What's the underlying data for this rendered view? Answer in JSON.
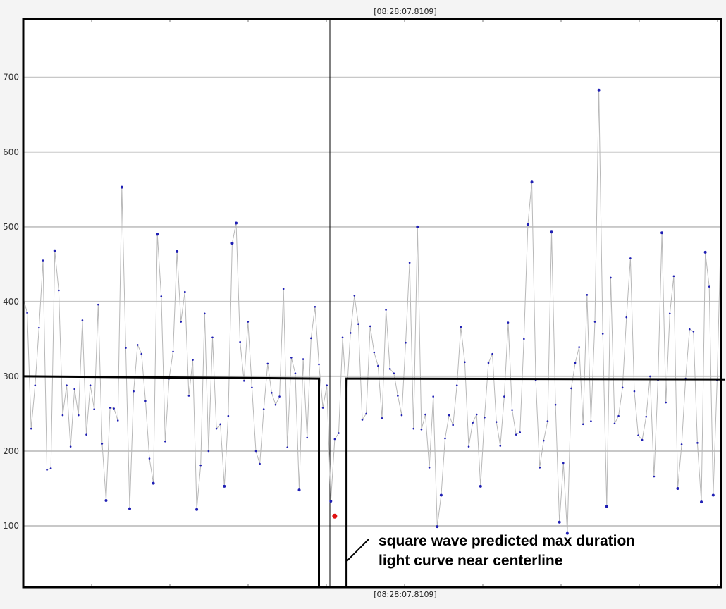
{
  "top_timestamp": "[08:28:07.8109]",
  "bottom_timestamp": "[08:28:07.8109]",
  "annotation": {
    "line1": "square wave predicted max duration",
    "line2": "light curve near centerline"
  },
  "colors": {
    "grid": "#c8c8c8",
    "curve": "#b8b8b8",
    "point": "#1f1fb4",
    "square_wave": "#000000",
    "highlight_point": "#e01010"
  },
  "chart_data": {
    "type": "line",
    "title": "",
    "xlabel": "",
    "ylabel": "",
    "ylim": [
      18,
      778
    ],
    "yticks": [
      100,
      200,
      300,
      400,
      500,
      600,
      700
    ],
    "grid": true,
    "centerline_time": "[08:28:07.8109]",
    "series": [
      {
        "values": [
          405,
          385,
          230,
          288,
          365,
          455,
          175,
          177,
          468,
          415,
          248,
          288,
          206,
          283,
          248,
          375,
          222,
          288,
          256,
          396,
          210,
          134,
          258,
          257,
          241,
          553,
          338,
          123,
          280,
          342,
          330,
          267,
          190,
          157,
          490,
          407,
          213,
          297,
          333,
          467,
          373,
          413,
          274,
          322,
          122,
          181,
          384,
          200,
          352,
          230,
          236,
          153,
          247,
          478,
          505,
          346,
          294,
          373,
          285,
          200,
          183,
          256,
          317,
          278,
          262,
          273,
          417,
          205,
          325,
          304,
          148,
          323,
          218,
          351,
          393,
          316,
          258,
          288,
          133,
          216,
          224,
          352,
          270,
          358,
          408,
          370,
          242,
          250,
          367,
          332,
          314,
          244,
          389,
          310,
          304,
          274,
          248,
          345,
          452,
          230,
          500,
          229,
          249,
          178,
          273,
          99,
          141,
          217,
          248,
          235,
          288,
          366,
          319,
          206,
          238,
          249,
          153,
          245,
          318,
          330,
          239,
          207,
          273,
          372,
          255,
          222,
          225,
          350,
          503,
          560,
          295,
          178,
          214,
          240,
          493,
          262,
          105,
          184,
          90,
          284,
          318,
          339,
          236,
          409,
          240,
          373,
          683,
          357,
          126,
          432,
          237,
          247,
          285,
          379,
          458,
          280,
          221,
          215,
          246,
          300,
          166,
          295,
          492,
          265,
          384,
          434,
          150,
          209,
          297,
          363,
          360,
          211,
          132,
          466,
          420,
          141,
          295,
          504
        ]
      },
      {
        "name": "square wave predicted max duration",
        "segments": [
          {
            "x": [
              0,
              75,
              75,
              82,
              82,
              178
            ],
            "y": [
              300,
              297,
              18,
              18,
              297,
              296
            ]
          }
        ]
      }
    ],
    "highlight_point": {
      "x": 79,
      "y": 113
    }
  }
}
